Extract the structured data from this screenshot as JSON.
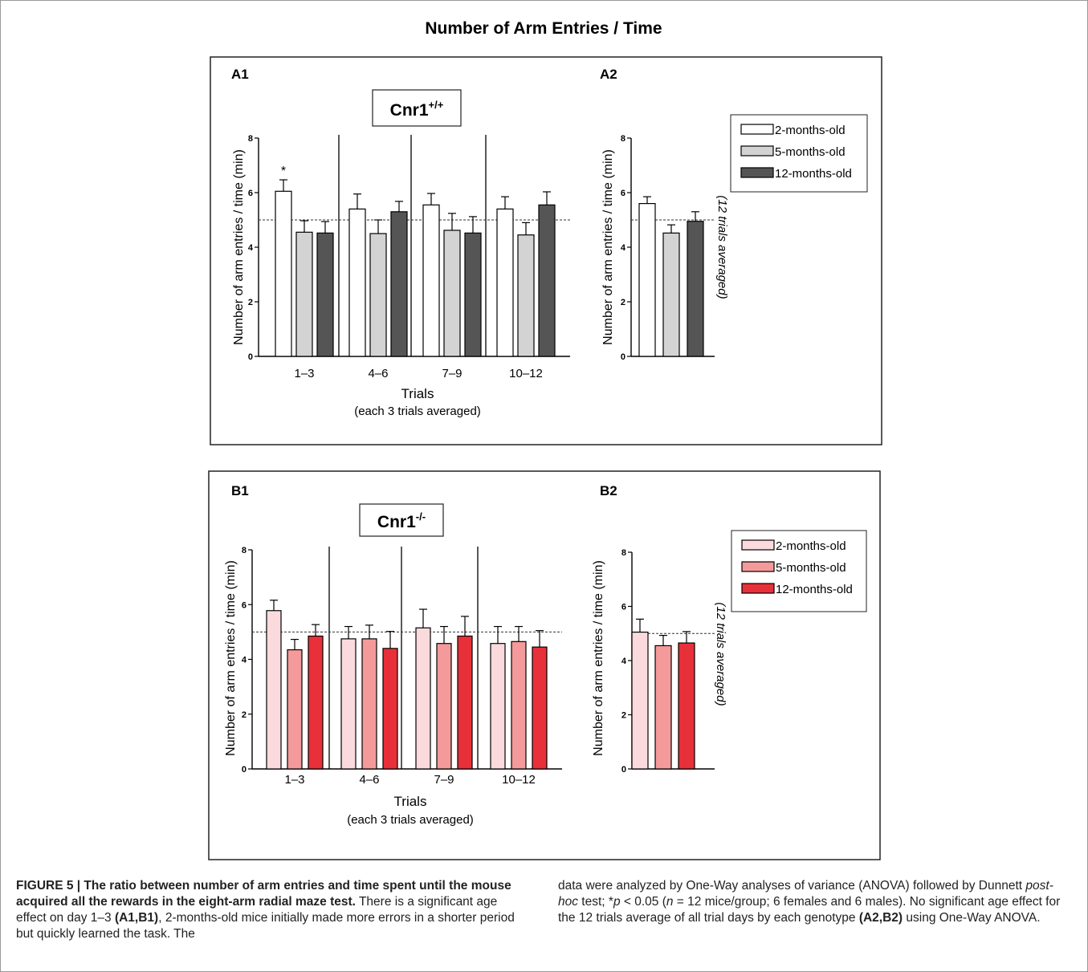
{
  "figure": {
    "title": "Number of Arm Entries / Time",
    "caption": {
      "left_bold": "FIGURE 5 | The ratio between number of arm entries and time spent until the mouse acquired all the rewards in the eight-arm radial maze test.",
      "left_text_1": " There is a significant age effect on day 1–3 ",
      "left_ref_1": "(A1,B1)",
      "left_text_2": ", 2-months-old mice initially made more errors in a shorter period but quickly learned the task. The",
      "right_text_1": "data were analyzed by One-Way analyses of variance (ANOVA) followed by Dunnett ",
      "right_italic_1": "post-hoc",
      "right_text_2": " test; *",
      "right_italic_p": "p",
      "right_text_3": " < 0.05 (",
      "right_italic_n": "n",
      "right_text_4": " = 12 mice/group; 6 females and 6 males). No significant age effect for the 12 trials average of all trial days by each genotype ",
      "right_ref": "(A2,B2)",
      "right_text_5": " using One-Way ANOVA."
    }
  },
  "panels": {
    "A": {
      "genotype_main": "Cnr1",
      "genotype_sup": "+/+"
    },
    "B": {
      "genotype_main": "Cnr1",
      "genotype_sup": "-/-"
    }
  },
  "chart_data": [
    {
      "id": "A1",
      "type": "bar",
      "label": "A1",
      "categories": [
        "1–3",
        "4–6",
        "7–9",
        "10–12"
      ],
      "series": [
        {
          "name": "2-months-old",
          "values": [
            6.05,
            5.4,
            5.55,
            5.4
          ],
          "errors": [
            0.42,
            0.55,
            0.42,
            0.45
          ],
          "color": "#ffffff"
        },
        {
          "name": "5-months-old",
          "values": [
            4.55,
            4.5,
            4.62,
            4.45
          ],
          "errors": [
            0.42,
            0.5,
            0.62,
            0.45
          ],
          "color": "#d3d3d3"
        },
        {
          "name": "12-months-old",
          "values": [
            4.52,
            5.3,
            4.52,
            5.55
          ],
          "errors": [
            0.42,
            0.38,
            0.6,
            0.48
          ],
          "color": "#555555"
        }
      ],
      "annotations": [
        {
          "category": "1–3",
          "series": "2-months-old",
          "text": "*"
        }
      ],
      "reference_line": 5.0,
      "xlabel": "Trials",
      "xlabel2": "(each 3 trials averaged)",
      "ylabel": "Number of arm entries / time (min)",
      "yticks": [
        "0",
        "2",
        "4",
        "6",
        "8"
      ],
      "ylim": [
        0,
        8
      ]
    },
    {
      "id": "A2",
      "type": "bar",
      "label": "A2",
      "categories": [
        ""
      ],
      "series": [
        {
          "name": "2-months-old",
          "values": [
            5.6
          ],
          "errors": [
            0.25
          ],
          "color": "#ffffff"
        },
        {
          "name": "5-months-old",
          "values": [
            4.52
          ],
          "errors": [
            0.3
          ],
          "color": "#d3d3d3"
        },
        {
          "name": "12-months-old",
          "values": [
            4.95
          ],
          "errors": [
            0.35
          ],
          "color": "#555555"
        }
      ],
      "reference_line": 5.0,
      "side_note": "(12 trials averaged)",
      "ylabel": "Number of arm entries / time (min)",
      "yticks": [
        "0",
        "2",
        "4",
        "6",
        "8"
      ],
      "ylim": [
        0,
        8
      ],
      "legend": [
        "2-months-old",
        "5-months-old",
        "12-months-old"
      ]
    },
    {
      "id": "B1",
      "type": "bar",
      "label": "B1",
      "categories": [
        "1–3",
        "4–6",
        "7–9",
        "10–12"
      ],
      "series": [
        {
          "name": "2-months-old",
          "values": [
            5.78,
            4.75,
            5.15,
            4.58
          ],
          "errors": [
            0.38,
            0.45,
            0.68,
            0.62
          ],
          "color": "#fadadd"
        },
        {
          "name": "5-months-old",
          "values": [
            4.35,
            4.75,
            4.58,
            4.65
          ],
          "errors": [
            0.38,
            0.5,
            0.62,
            0.55
          ],
          "color": "#f49a9a"
        },
        {
          "name": "12-months-old",
          "values": [
            4.85,
            4.4,
            4.85,
            4.45
          ],
          "errors": [
            0.42,
            0.62,
            0.72,
            0.6
          ],
          "color": "#e8303a"
        }
      ],
      "reference_line": 5.0,
      "xlabel": "Trials",
      "xlabel2": "(each 3 trials averaged)",
      "ylabel": "Number of arm entries / time (min)",
      "yticks": [
        "0",
        "2",
        "4",
        "6",
        "8"
      ],
      "ylim": [
        0,
        8
      ]
    },
    {
      "id": "B2",
      "type": "bar",
      "label": "B2",
      "categories": [
        ""
      ],
      "series": [
        {
          "name": "2-months-old",
          "values": [
            5.05
          ],
          "errors": [
            0.48
          ],
          "color": "#fadadd"
        },
        {
          "name": "5-months-old",
          "values": [
            4.55
          ],
          "errors": [
            0.38
          ],
          "color": "#f49a9a"
        },
        {
          "name": "12-months-old",
          "values": [
            4.65
          ],
          "errors": [
            0.42
          ],
          "color": "#e8303a"
        }
      ],
      "reference_line": 5.0,
      "side_note": "(12 trials averaged)",
      "ylabel": "Number of arm entries / time (min)",
      "yticks": [
        "0",
        "2",
        "4",
        "6",
        "8"
      ],
      "ylim": [
        0,
        8
      ],
      "legend": [
        "2-months-old",
        "5-months-old",
        "12-months-old"
      ]
    }
  ]
}
